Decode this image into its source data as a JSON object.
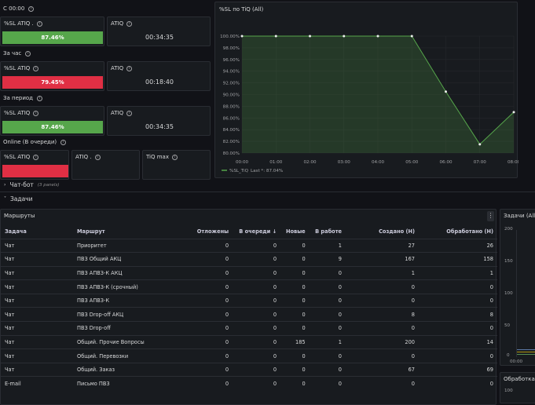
{
  "top_sections": [
    {
      "label": "С 00:00",
      "sl_title": "%SL ATIQ .",
      "sl_value": "87.46%",
      "sl_status": "green",
      "atiq_title": "ATIQ",
      "atiq_value": "00:34:35"
    },
    {
      "label": "За час",
      "sl_title": "%SL ATIQ",
      "sl_value": "79.45%",
      "sl_status": "red",
      "atiq_title": "ATIQ",
      "atiq_value": "00:18:40"
    },
    {
      "label": "За период",
      "sl_title": "%SL ATIQ",
      "sl_value": "87.46%",
      "sl_status": "green",
      "atiq_title": "ATIQ",
      "atiq_value": "00:34:35"
    }
  ],
  "online": {
    "label": "Online (В очереди)",
    "sl_title": "%SL ATIQ",
    "sl_status": "red",
    "atiq_title": "ATIQ .",
    "tiq_title": "TiQ max"
  },
  "chart_panel_title": "%SL по TiQ (All)",
  "chart_data": {
    "type": "area",
    "title": "%SL по TiQ (All)",
    "x": [
      "00:00",
      "01:00",
      "02:00",
      "03:00",
      "04:00",
      "05:00",
      "06:00",
      "07:00",
      "08:00"
    ],
    "y_ticks": [
      "80.00%",
      "82.00%",
      "84.00%",
      "86.00%",
      "88.00%",
      "90.00%",
      "92.00%",
      "94.00%",
      "96.00%",
      "98.00%",
      "100.00%"
    ],
    "ylim": [
      80,
      100
    ],
    "series": [
      {
        "name": "%SL_TiQ",
        "points": [
          [
            0,
            100
          ],
          [
            1,
            100
          ],
          [
            2,
            100
          ],
          [
            3,
            100
          ],
          [
            4,
            100
          ],
          [
            5,
            100
          ],
          [
            6,
            90.5
          ],
          [
            7,
            81.5
          ],
          [
            8,
            87
          ]
        ]
      }
    ],
    "legend": {
      "name": "%SL_TiQ",
      "text": "Last *: 87.04%"
    },
    "legend_position": "bottom-left",
    "grid": true,
    "color": "#56a64b"
  },
  "rows": [
    {
      "label": "Чат-бот",
      "note": "(3 panels)",
      "collapsed": true
    },
    {
      "label": "Задачи",
      "collapsed": false
    }
  ],
  "routes_panel": {
    "title": "Маршруты",
    "columns": [
      "Задача",
      "Маршрут",
      "Отложены",
      "В очереди",
      "Новые",
      "В работе",
      "Создано (Н)",
      "Обработано (Н)"
    ],
    "sort_indicator": "↓",
    "rows": [
      [
        "Чат",
        "Приоритет",
        "0",
        "0",
        "0",
        "1",
        "27",
        "26"
      ],
      [
        "Чат",
        "ПВЗ Общий АКЦ",
        "0",
        "0",
        "0",
        "9",
        "167",
        "158"
      ],
      [
        "Чат",
        "ПВЗ АПВЗ-К АКЦ",
        "0",
        "0",
        "0",
        "0",
        "1",
        "1"
      ],
      [
        "Чат",
        "ПВЗ АПВЗ-К (срочный)",
        "0",
        "0",
        "0",
        "0",
        "0",
        "0"
      ],
      [
        "Чат",
        "ПВЗ АПВЗ-К",
        "0",
        "0",
        "0",
        "0",
        "0",
        "0"
      ],
      [
        "Чат",
        "ПВЗ Drop-off АКЦ",
        "0",
        "0",
        "0",
        "0",
        "8",
        "8"
      ],
      [
        "Чат",
        "ПВЗ Drop-off",
        "0",
        "0",
        "0",
        "0",
        "0",
        "0"
      ],
      [
        "Чат",
        "Общий. Прочие Вопросы",
        "0",
        "0",
        "185",
        "1",
        "200",
        "14"
      ],
      [
        "Чат",
        "Общий. Перевозки",
        "0",
        "0",
        "0",
        "0",
        "0",
        "0"
      ],
      [
        "Чат",
        "Общий. Заказ",
        "0",
        "0",
        "0",
        "0",
        "67",
        "69"
      ],
      [
        "E-mail",
        "Письмо ПВЗ",
        "0",
        "0",
        "0",
        "0",
        "0",
        "0"
      ]
    ]
  },
  "side_panel": {
    "title": "Задачи (All)",
    "y_ticks": [
      "200",
      "150",
      "100",
      "50",
      "0"
    ],
    "x_tick": "00:00"
  },
  "side_panel2": {
    "title": "Обработка",
    "y_tick": "100"
  },
  "menu_icon": "vertical-dots-icon"
}
